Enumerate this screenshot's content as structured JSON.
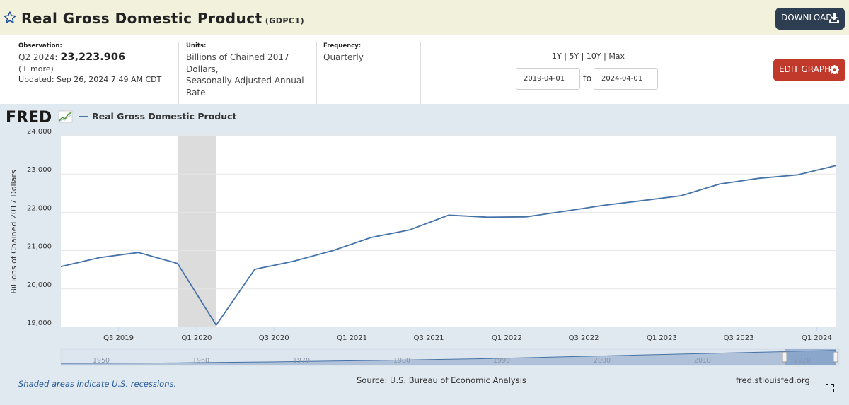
{
  "header": {
    "title": "Real Gross Domestic Product",
    "series_id": "(GDPC1)",
    "download_label": "DOWNLOAD"
  },
  "info": {
    "observation_label": "Observation:",
    "observation_period": "Q2 2024:",
    "observation_value": "23,223.906",
    "more_link": "(+ more)",
    "updated_label": "Updated:",
    "updated_value": "Sep 26, 2024 7:49 AM CDT",
    "units_label": "Units:",
    "units_line1": "Billions of Chained 2017",
    "units_line2": "Dollars,",
    "units_line3": "Seasonally Adjusted Annual",
    "units_line4": "Rate",
    "frequency_label": "Frequency:",
    "frequency_value": "Quarterly"
  },
  "controls": {
    "range_1y": "1Y",
    "range_5y": "5Y",
    "range_10y": "10Y",
    "range_max": "Max",
    "separator": "|",
    "start_date": "2019-04-01",
    "to_label": "to",
    "end_date": "2024-04-01",
    "edit_graph_label": "EDIT GRAPH"
  },
  "legend": {
    "fred_logo_text": "FRED",
    "series_label": "Real Gross Domestic Product"
  },
  "footer": {
    "recession_note": "Shaded areas indicate U.S. recessions.",
    "source": "Source: U.S. Bureau of Economic Analysis",
    "url": "fred.stlouisfed.org"
  },
  "colors": {
    "line": "#4572a7",
    "recession": "#dcdcdc",
    "panel": "#e1e9f0",
    "edit_button": "#c0392b",
    "download_button": "#2d3e53"
  },
  "chart_data": {
    "type": "line",
    "title": "Real Gross Domestic Product",
    "ylabel": "Billions of Chained 2017 Dollars",
    "xlabel": "",
    "ylim": [
      19000,
      24000
    ],
    "yticks": [
      "19,000",
      "20,000",
      "21,000",
      "22,000",
      "23,000",
      "24,000"
    ],
    "ytick_values": [
      19000,
      20000,
      21000,
      22000,
      23000,
      24000
    ],
    "xtick_labels": [
      "Q3 2019",
      "Q1 2020",
      "Q3 2020",
      "Q1 2021",
      "Q3 2021",
      "Q1 2022",
      "Q3 2022",
      "Q1 2023",
      "Q3 2023",
      "Q1 2024"
    ],
    "x": [
      "2019-04-01",
      "2019-07-01",
      "2019-10-01",
      "2020-01-01",
      "2020-04-01",
      "2020-07-01",
      "2020-10-01",
      "2021-01-01",
      "2021-04-01",
      "2021-07-01",
      "2021-10-01",
      "2022-01-01",
      "2022-04-01",
      "2022-07-01",
      "2022-10-01",
      "2023-01-01",
      "2023-04-01",
      "2023-07-01",
      "2023-10-01",
      "2024-01-01",
      "2024-04-01"
    ],
    "series": [
      {
        "name": "Real Gross Domestic Product",
        "values": [
          20585,
          20818,
          20952,
          20665,
          19056,
          20512,
          20725,
          21002,
          21343,
          21543,
          21927,
          21873,
          21882,
          22027,
          22182,
          22306,
          22431,
          22738,
          22888,
          22977,
          23224
        ]
      }
    ],
    "recession": {
      "start": "2020-01-01",
      "end": "2020-04-01"
    },
    "navigator_labels": [
      "1950",
      "1960",
      "1970",
      "1980",
      "1990",
      "2000",
      "2010",
      "2020"
    ],
    "grid": true
  }
}
